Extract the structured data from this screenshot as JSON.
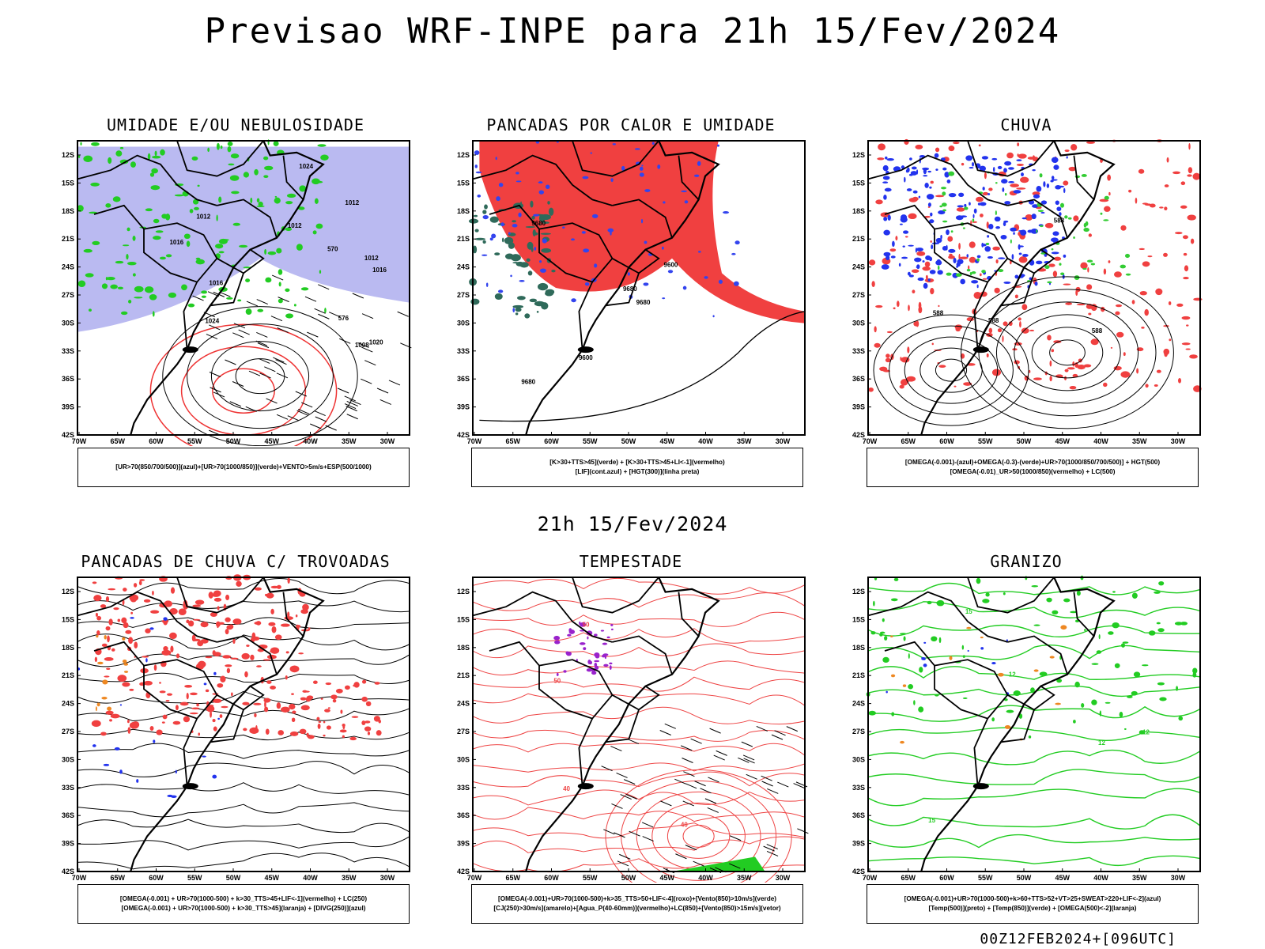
{
  "header": {
    "title": "Previsao WRF-INPE  para 21h 15/Fev/2024"
  },
  "mid_title": "21h 15/Fev/2024",
  "footer": "00Z12FEB2024+[096UTC]",
  "axes": {
    "lat_labels": [
      "12S",
      "15S",
      "18S",
      "21S",
      "24S",
      "27S",
      "30S",
      "33S",
      "36S",
      "39S",
      "42S"
    ],
    "lon_labels": [
      "70W",
      "65W",
      "60W",
      "55W",
      "50W",
      "45W",
      "40W",
      "35W",
      "30W"
    ]
  },
  "panels": [
    {
      "id": "umidade",
      "title": "UMIDADE E/OU NEBULOSIDADE",
      "legend": [
        "[UR>70(850/700/500)](azul)+[UR>70(1000/850)](verde)+VENTO>5m/s+ESP(500/1000)"
      ],
      "labels": [
        "1012",
        "1012",
        "1012",
        "1016",
        "1016",
        "1020",
        "1024",
        "1024",
        "1008",
        "1012",
        "1016",
        "576",
        "570"
      ],
      "colors": {
        "fill": "#a9a9ee",
        "contour": "#22cc22",
        "dash": "#ee3333"
      }
    },
    {
      "id": "pancadas-calor",
      "title": "PANCADAS POR CALOR E UMIDADE",
      "legend": [
        "[K>30+TTS>45](verde) + [K>30+TTS>45+LI<-1](vermelho)",
        "[LIF](cont.azul) + [HGT(300)](linha preta)"
      ],
      "labels": [
        "9680",
        "9680",
        "9680",
        "9680",
        "9600",
        "9600"
      ],
      "colors": {
        "fill": "#f04040",
        "green": "#2f6a5a",
        "contour": "#3344ee"
      }
    },
    {
      "id": "chuva",
      "title": "CHUVA",
      "legend": [
        "[OMEGA(-0.001)-(azul)+OMEGA(-0.3)-(verde)+UR>70(1000/850/700/500)] + HGT(500)",
        "[OMEGA(-0.01)_UR>50(1000/850)(vermelho) + LC(500)"
      ],
      "labels": [
        "588",
        "588",
        "588",
        "588"
      ],
      "colors": {
        "red": "#f04040",
        "blue": "#2233ee",
        "green": "#33cc33"
      }
    },
    {
      "id": "trovoadas",
      "title": "PANCADAS DE CHUVA C/ TROVOADAS",
      "legend": [
        "[OMEGA(-0.001) + UR>70(1000-500) + k>30_TTS>45+LIF<-1](vermelho) + LC(250)",
        "[OMEGA(-0.001) + UR>70(1000-500) + k>30_TTS>45](laranja) + [DIVG(250)](azul)"
      ],
      "labels": [],
      "colors": {
        "red": "#f04040",
        "orange": "#ee8822",
        "blue": "#2233ee"
      }
    },
    {
      "id": "tempestade",
      "title": "TEMPESTADE",
      "legend": [
        "[OMEGA(-0.001)+UR>70(1000-500)+k>35_TTS>50+LIF<-4](roxo)+[Vento(850)>10m/s](verde)",
        "[CJ(250)>30m/s](amarelo)+[Agua_P(40-60mm)](vermelho)+LC(850)+[Vento(850)>15m/s](vetor)"
      ],
      "labels": [
        "40",
        "50",
        "40",
        "50"
      ],
      "colors": {
        "line": "#ee4444",
        "purple": "#9922cc",
        "green": "#22cc22"
      }
    },
    {
      "id": "granizo",
      "title": "GRANIZO",
      "legend": [
        "[OMEGA(-0.001)+UR>70(1000-500)+k>60+TTS>52+VT>25+SWEAT>220+LIF<-2](azul)",
        "[Temp(500)](preto) + [Temp(850)](verde) + [OMEGA(500)<-2](laranja)"
      ],
      "labels": [
        "12",
        "12",
        "15",
        "15",
        "12"
      ],
      "colors": {
        "line": "#22cc22",
        "orange": "#ee8822",
        "blue": "#2233ee"
      }
    }
  ]
}
